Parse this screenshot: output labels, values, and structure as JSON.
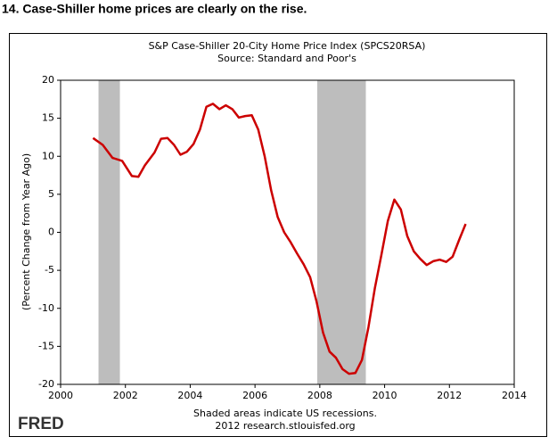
{
  "heading": "14. Case-Shiller home prices are clearly on the rise.",
  "chart_data": {
    "type": "line",
    "title": "S&P Case-Shiller 20-City Home Price Index (SPCS20RSA)",
    "subtitle": "Source: Standard and Poor's",
    "ylabel": "(Percent Change from Year Ago)",
    "note": "Shaded areas indicate US recessions.",
    "credit": "2012 research.stlouisfed.org",
    "logo": "FRED",
    "xlim": [
      2000,
      2014
    ],
    "xticks": [
      2000,
      2002,
      2004,
      2006,
      2008,
      2010,
      2012,
      2014
    ],
    "ylim": [
      -20,
      20
    ],
    "yticks": [
      -20,
      -15,
      -10,
      -5,
      0,
      5,
      10,
      15,
      20
    ],
    "recessions": [
      {
        "start": 2001.17,
        "end": 2001.83
      },
      {
        "start": 2007.92,
        "end": 2009.42
      }
    ],
    "recession_color": "#bdbdbd",
    "series": [
      {
        "name": "SPCS20RSA",
        "color": "#cc0000",
        "x": [
          2001.0,
          2001.3,
          2001.6,
          2001.9,
          2002.2,
          2002.4,
          2002.6,
          2002.9,
          2003.1,
          2003.3,
          2003.5,
          2003.7,
          2003.9,
          2004.1,
          2004.3,
          2004.5,
          2004.7,
          2004.9,
          2005.1,
          2005.3,
          2005.5,
          2005.7,
          2005.9,
          2006.1,
          2006.3,
          2006.5,
          2006.7,
          2006.9,
          2007.1,
          2007.3,
          2007.5,
          2007.7,
          2007.9,
          2008.1,
          2008.3,
          2008.5,
          2008.7,
          2008.9,
          2009.1,
          2009.3,
          2009.5,
          2009.7,
          2009.9,
          2010.1,
          2010.3,
          2010.5,
          2010.7,
          2010.9,
          2011.1,
          2011.3,
          2011.5,
          2011.7,
          2011.9,
          2012.1,
          2012.3,
          2012.5
        ],
        "values": [
          12.4,
          11.5,
          9.8,
          9.4,
          7.4,
          7.3,
          8.8,
          10.5,
          12.3,
          12.4,
          11.5,
          10.2,
          10.6,
          11.6,
          13.5,
          16.5,
          16.9,
          16.2,
          16.7,
          16.2,
          15.1,
          15.3,
          15.4,
          13.5,
          10.0,
          5.5,
          2.0,
          0.0,
          -1.3,
          -2.8,
          -4.2,
          -5.9,
          -9.1,
          -13.2,
          -15.7,
          -16.5,
          -18.0,
          -18.6,
          -18.5,
          -16.8,
          -12.5,
          -7.3,
          -3.0,
          1.5,
          4.3,
          3.0,
          -0.5,
          -2.5,
          -3.5,
          -4.3,
          -3.8,
          -3.6,
          -3.9,
          -3.2,
          -1.0,
          1.1
        ]
      }
    ]
  }
}
